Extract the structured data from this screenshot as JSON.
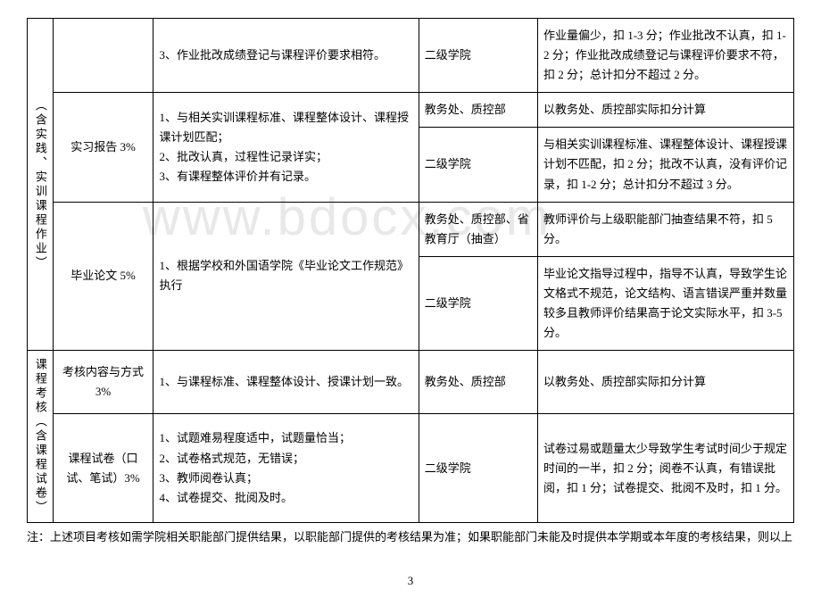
{
  "watermark": "www.bdocx.com",
  "table": {
    "rows": [
      {
        "c1": "（含实践、实训课程作业）",
        "c1_rowspan": 5,
        "c2": "",
        "c3": "3、作业批改成绩登记与课程评价要求相符。",
        "c4": "二级学院",
        "c5": "作业量偏少，扣 1-3 分；作业批改不认真，扣 1-2 分；作业批改成绩登记与课程评价要求不符，扣 2 分；总计扣分不超过 2 分。"
      },
      {
        "c2": "实习报告 3%",
        "c2_rowspan": 2,
        "c3": "1、与相关实训课程标准、课程整体设计、课程授课计划匹配；\n2、批改认真，过程性记录详实；\n3、有课程整体评价并有记录。",
        "c3_rowspan": 2,
        "c4": "教务处、质控部",
        "c5": "以教务处、质控部实际扣分计算"
      },
      {
        "c4": "二级学院",
        "c5": "与相关实训课程标准、课程整体设计、课程授课计划不匹配，扣 2 分；批改不认真，没有评价记录，扣 1-2 分；总计扣分不超过 3 分。"
      },
      {
        "c2": "毕业论文 5%",
        "c2_rowspan": 2,
        "c3": "1、根据学校和外国语学院《毕业论文工作规范》执行",
        "c3_rowspan": 2,
        "c4": "教务处、质控部、省教育厅（抽查）",
        "c5": "教师评价与上级职能部门抽查结果不符，扣 5 分。"
      },
      {
        "c4": "二级学院",
        "c5": "毕业论文指导过程中，指导不认真，导致学生论文格式不规范，论文结构、语言错误严重并数量较多且教师评价结果高于论文实际水平，扣 3-5 分。"
      },
      {
        "c1": "课程考核（含课程试卷）",
        "c1_rowspan": 2,
        "c2": "考核内容与方式 3%",
        "c3": "1、与课程标准、课程整体设计、授课计划一致。",
        "c4": "教务处、质控部",
        "c4_rowspan": 1,
        "c5": "以教务处、质控部实际扣分计算"
      },
      {
        "c2": "课程试卷（口试、笔试）3%",
        "c3": "1、试题难易程度适中，试题量恰当；\n2、试卷格式规范，无错误；\n3、教师阅卷认真；\n4、试卷提交、批阅及时。",
        "c4": "二级学院",
        "c5": "试卷过易或题量太少导致学生考试时间少于规定时间的一半，扣 2 分；阅卷不认真，有错误批阅，扣 1 分；试卷提交、批阅不及时，扣 1 分。"
      }
    ]
  },
  "note": "注：上述项目考核如需学院相关职能部门提供结果，以职能部门提供的考核结果为准；如果职能部门未能及时提供本学期或本年度的考核结果，则以上",
  "page_number": "3"
}
